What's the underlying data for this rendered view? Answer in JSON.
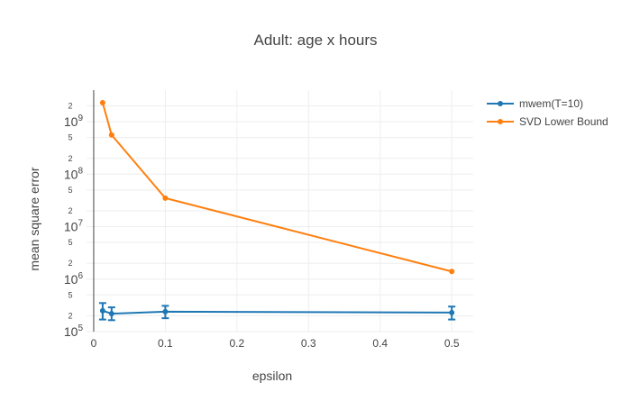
{
  "chart_data": {
    "type": "line",
    "title": "Adult: age x hours",
    "xlabel": "epsilon",
    "ylabel": "mean square error",
    "xlim": [
      -0.01,
      0.53
    ],
    "ylim": [
      100000,
      4000000000
    ],
    "x_ticks": [
      0,
      0.1,
      0.2,
      0.3,
      0.4,
      0.5
    ],
    "x_tick_labels": [
      "0",
      "0.1",
      "0.2",
      "0.3",
      "0.4",
      "0.5"
    ],
    "y_scale": "log",
    "y_major_ticks": [
      {
        "value": 100000,
        "base": "10",
        "exp": "5"
      },
      {
        "value": 1000000,
        "base": "10",
        "exp": "6"
      },
      {
        "value": 10000000,
        "base": "10",
        "exp": "7"
      },
      {
        "value": 100000000,
        "base": "10",
        "exp": "8"
      },
      {
        "value": 1000000000,
        "base": "10",
        "exp": "9"
      }
    ],
    "y_minor_ticks": [
      {
        "value": 200000,
        "label": "2"
      },
      {
        "value": 500000,
        "label": "5"
      },
      {
        "value": 2000000,
        "label": "2"
      },
      {
        "value": 5000000,
        "label": "5"
      },
      {
        "value": 20000000,
        "label": "2"
      },
      {
        "value": 50000000,
        "label": "5"
      },
      {
        "value": 200000000,
        "label": "2"
      },
      {
        "value": 500000000,
        "label": "5"
      },
      {
        "value": 2000000000,
        "label": "2"
      }
    ],
    "grid": true,
    "legend": "top-right",
    "series": [
      {
        "name": "mwem(T=10)",
        "color": "#1f77b4",
        "x": [
          0.0125,
          0.025,
          0.1,
          0.5
        ],
        "y": [
          250000,
          220000,
          240000,
          230000
        ],
        "error_low": [
          170000,
          165000,
          180000,
          170000
        ],
        "error_high": [
          350000,
          290000,
          310000,
          300000
        ]
      },
      {
        "name": "SVD Lower Bound",
        "color": "#ff7f0e",
        "x": [
          0.0125,
          0.025,
          0.1,
          0.5
        ],
        "y": [
          2300000000,
          560000000,
          35000000,
          1400000
        ]
      }
    ]
  }
}
